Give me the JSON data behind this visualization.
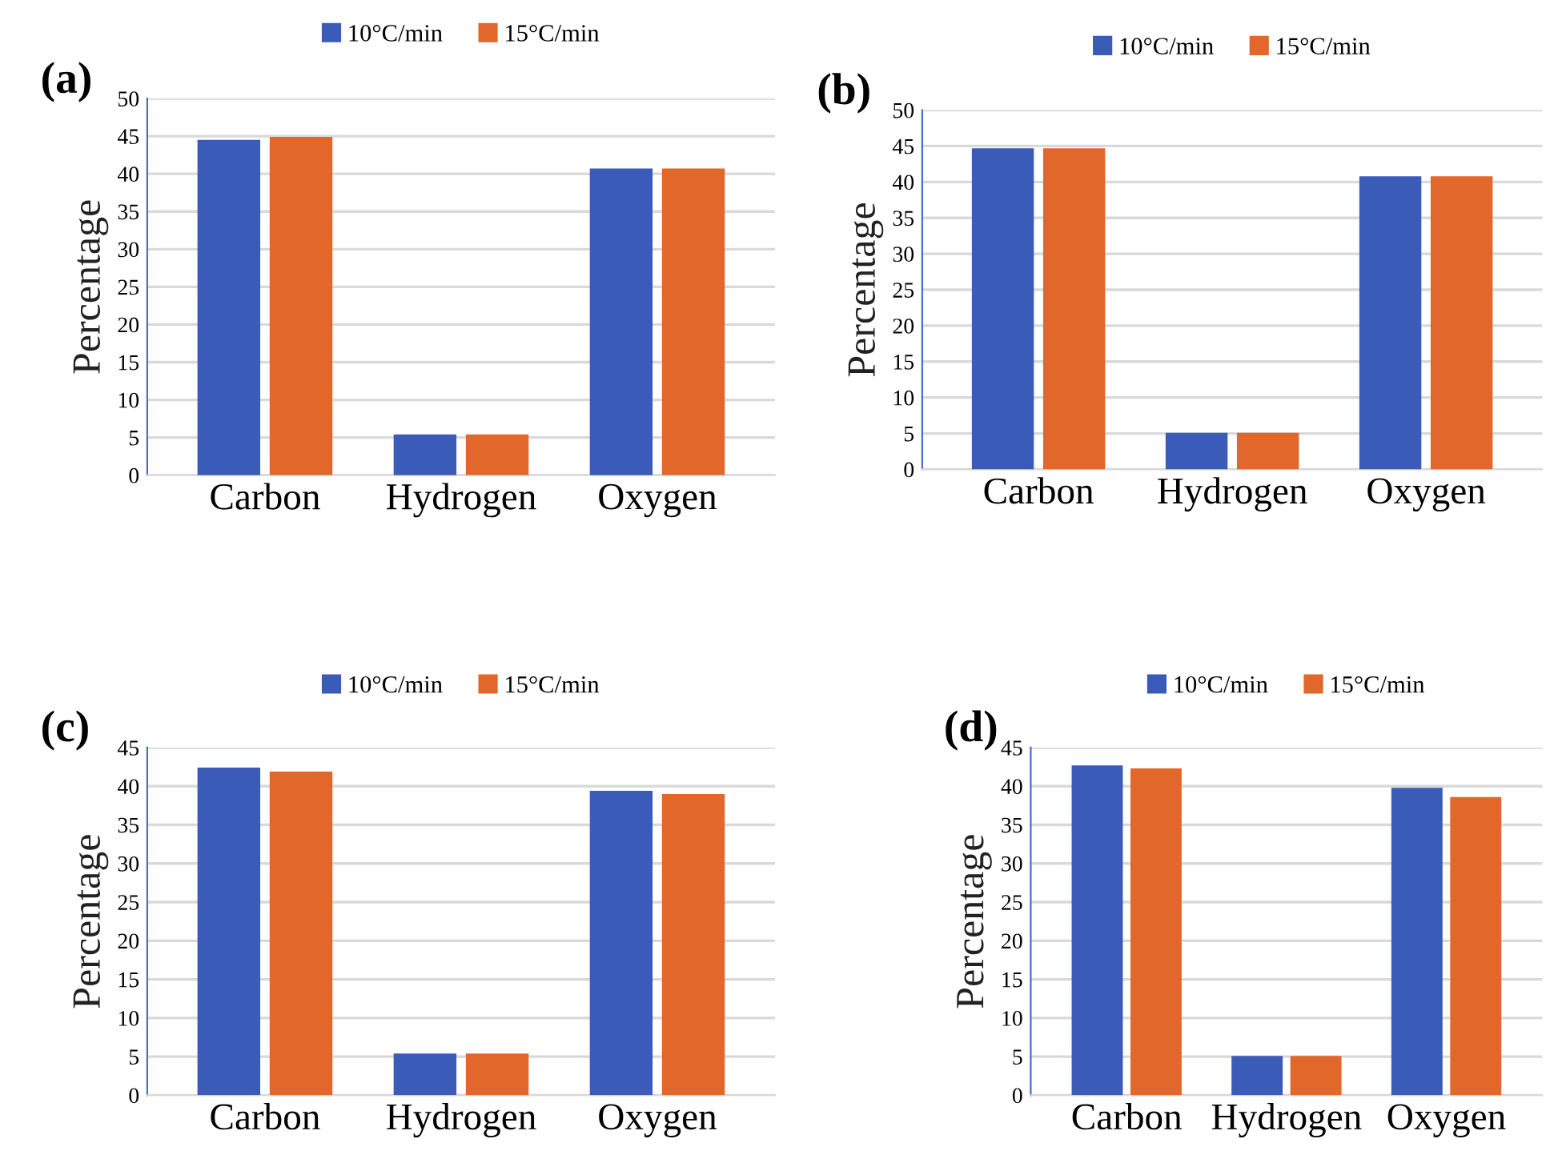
{
  "chart_data": [
    {
      "type": "bar",
      "title": "(a)",
      "ylabel": "Percentage",
      "categories": [
        "Carbon",
        "Hydrogen",
        "Oxygen"
      ],
      "series": [
        {
          "name": "10°C/min",
          "color": "#3a5bb8",
          "values": [
            44.5,
            5.4,
            40.7
          ]
        },
        {
          "name": "15°C/min",
          "color": "#e2672a",
          "values": [
            44.9,
            5.4,
            40.7
          ]
        }
      ],
      "ylim": [
        0,
        50
      ],
      "yticks": [
        0,
        5,
        10,
        15,
        20,
        25,
        30,
        35,
        40,
        45,
        50
      ],
      "grid": "y",
      "legend": "top"
    },
    {
      "type": "bar",
      "title": "(b)",
      "ylabel": "Percentage",
      "categories": [
        "Carbon",
        "Hydrogen",
        "Oxygen"
      ],
      "series": [
        {
          "name": "10°C/min",
          "color": "#3a5bb8",
          "values": [
            44.7,
            5.1,
            40.8
          ]
        },
        {
          "name": "15°C/min",
          "color": "#e2672a",
          "values": [
            44.7,
            5.1,
            40.8
          ]
        }
      ],
      "ylim": [
        0,
        50
      ],
      "yticks": [
        0,
        5,
        10,
        15,
        20,
        25,
        30,
        35,
        40,
        45,
        50
      ],
      "grid": "y",
      "legend": "top"
    },
    {
      "type": "bar",
      "title": "(c)",
      "ylabel": "Percentage",
      "categories": [
        "Carbon",
        "Hydrogen",
        "Oxygen"
      ],
      "series": [
        {
          "name": "10°C/min",
          "color": "#3a5bb8",
          "values": [
            42.4,
            5.4,
            39.4
          ]
        },
        {
          "name": "15°C/min",
          "color": "#e2672a",
          "values": [
            41.9,
            5.4,
            39.0
          ]
        }
      ],
      "ylim": [
        0,
        45
      ],
      "yticks": [
        0,
        5,
        10,
        15,
        20,
        25,
        30,
        35,
        40,
        45
      ],
      "grid": "y",
      "legend": "top"
    },
    {
      "type": "bar",
      "title": "(d)",
      "ylabel": "Percentage",
      "categories": [
        "Carbon",
        "Hydrogen",
        "Oxygen"
      ],
      "series": [
        {
          "name": "10°C/min",
          "color": "#3a5bb8",
          "values": [
            42.7,
            5.1,
            39.8
          ]
        },
        {
          "name": "15°C/min",
          "color": "#e2672a",
          "values": [
            42.3,
            5.1,
            38.6
          ]
        }
      ],
      "ylim": [
        0,
        45
      ],
      "yticks": [
        0,
        5,
        10,
        15,
        20,
        25,
        30,
        35,
        40,
        45
      ],
      "grid": "y",
      "legend": "top"
    }
  ]
}
